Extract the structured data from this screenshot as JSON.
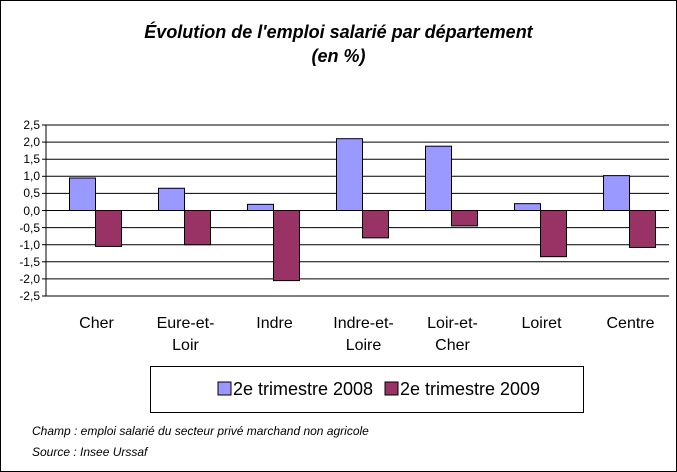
{
  "chart_data": {
    "type": "bar",
    "title": "Évolution de l'emploi salarié par département",
    "subtitle": "(en %)",
    "categories": [
      "Cher",
      "Eure-et-Loir",
      "Indre",
      "Indre-et-Loire",
      "Loir-et-Cher",
      "Loiret",
      "Centre"
    ],
    "series": [
      {
        "name": "2e trimestre 2008",
        "color": "#9999ff",
        "values": [
          0.95,
          0.65,
          0.18,
          2.1,
          1.88,
          0.2,
          1.02
        ]
      },
      {
        "name": "2e trimestre 2009",
        "color": "#993366",
        "values": [
          -1.05,
          -1.0,
          -2.05,
          -0.8,
          -0.45,
          -1.35,
          -1.08
        ]
      }
    ],
    "ylim": [
      -2.5,
      2.5
    ],
    "yticks": [
      {
        "value": 2.5,
        "label": "2,5"
      },
      {
        "value": 2.0,
        "label": "2,0"
      },
      {
        "value": 1.5,
        "label": "1,5"
      },
      {
        "value": 1.0,
        "label": "1,0"
      },
      {
        "value": 0.5,
        "label": "0,5"
      },
      {
        "value": 0,
        "label": "0,0"
      },
      {
        "value": -0.5,
        "label": "-0,5"
      },
      {
        "value": -1.0,
        "label": "-1,0"
      },
      {
        "value": -1.5,
        "label": "-1,5"
      },
      {
        "value": -2.0,
        "label": "-2,0"
      },
      {
        "value": -2.5,
        "label": "-2,5"
      }
    ],
    "grid": true,
    "legend": "bottom",
    "notes": [
      "Champ : emploi salarié du secteur privé marchand non agricole",
      "Source : Insee Urssaf"
    ]
  }
}
